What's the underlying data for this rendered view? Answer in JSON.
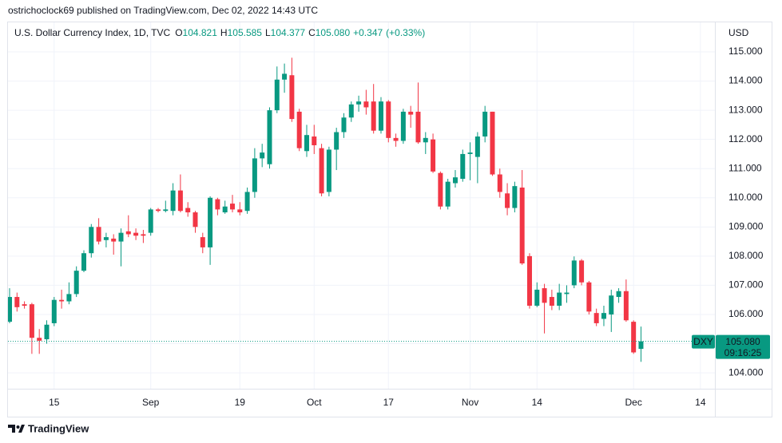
{
  "chart_data": {
    "type": "candlestick",
    "publisher_line": "ostrichoclock69 published on TradingView.com, Dec 02, 2022 14:43 UTC",
    "title": "U.S. Dollar Currency Index, 1D, TVC",
    "ohlc_keys": [
      "O",
      "H",
      "L",
      "C"
    ],
    "last_close_label": "105.080",
    "change": {
      "value": 0.347,
      "label": "+0.347"
    },
    "change_pct": {
      "value": 0.33,
      "label": "(+0.33%)"
    },
    "currency": "USD",
    "symbol": "DXY",
    "countdown": "09:16:25",
    "brand": "TradingView",
    "up_color": "#089981",
    "down_color": "#f23645",
    "grid": true,
    "xlim": [
      -0.215,
      94.95
    ],
    "xticks": [
      {
        "value": 6,
        "label": "15"
      },
      {
        "value": 19,
        "label": "Sep"
      },
      {
        "value": 31,
        "label": "19"
      },
      {
        "value": 41,
        "label": "Oct"
      },
      {
        "value": 51,
        "label": "17"
      },
      {
        "value": 62,
        "label": "Nov"
      },
      {
        "value": 71,
        "label": "14"
      },
      {
        "value": 84,
        "label": "Dec"
      },
      {
        "value": 93,
        "label": "14"
      }
    ],
    "ylim": [
      103.455,
      116.04
    ],
    "yticks": [
      {
        "value": 104,
        "label": "104.000"
      },
      {
        "value": 105,
        "label": "105.000"
      },
      {
        "value": 106,
        "label": "106.000"
      },
      {
        "value": 107,
        "label": "107.000"
      },
      {
        "value": 108,
        "label": "108.000"
      },
      {
        "value": 109,
        "label": "109.000"
      },
      {
        "value": 110,
        "label": "110.000"
      },
      {
        "value": 111,
        "label": "111.000"
      },
      {
        "value": 112,
        "label": "112.000"
      },
      {
        "value": 113,
        "label": "113.000"
      },
      {
        "value": 114,
        "label": "114.000"
      },
      {
        "value": 115,
        "label": "115.000"
      }
    ],
    "open": [
      105.75,
      106.6,
      106.35,
      106.35,
      105.2,
      105.15,
      105.7,
      106.5,
      106.45,
      106.7,
      107.5,
      108.1,
      109.0,
      108.55,
      108.6,
      108.5,
      108.85,
      108.8,
      108.75,
      108.8,
      109.6,
      109.55,
      109.55,
      110.25,
      109.65,
      109.5,
      108.65,
      108.3,
      109.95,
      109.5,
      109.8,
      109.6,
      109.55,
      110.2,
      111.35,
      111.15,
      113.0,
      114.05,
      114.2,
      112.95,
      111.6,
      112.1,
      111.7,
      110.2,
      111.65,
      112.25,
      112.75,
      113.2,
      113.3,
      113.3,
      112.3,
      113.3,
      112.05,
      111.95,
      112.95,
      112.95,
      111.9,
      112.0,
      110.85,
      109.7,
      110.5,
      110.65,
      111.5,
      111.4,
      112.1,
      112.95,
      110.8,
      110.15,
      109.65,
      110.35,
      108.0,
      106.3,
      106.9,
      106.6,
      106.3,
      106.7,
      107.0,
      107.85,
      107.1,
      106.05,
      105.85,
      106.0,
      106.6,
      106.8,
      105.75,
      104.821
    ],
    "high": [
      106.9,
      106.75,
      106.45,
      106.4,
      105.5,
      105.8,
      106.6,
      106.85,
      107.1,
      107.65,
      108.2,
      109.1,
      109.3,
      108.8,
      108.75,
      108.95,
      109.4,
      108.95,
      108.9,
      109.65,
      109.65,
      109.9,
      110.5,
      110.8,
      109.85,
      109.55,
      108.8,
      110.05,
      110.0,
      109.9,
      110.1,
      109.85,
      110.35,
      111.7,
      111.85,
      113.1,
      114.5,
      114.6,
      114.8,
      113.05,
      112.5,
      112.5,
      111.85,
      111.75,
      112.4,
      112.9,
      113.3,
      113.5,
      113.7,
      113.9,
      113.45,
      113.35,
      112.2,
      113.05,
      113.15,
      113.95,
      112.25,
      112.2,
      110.9,
      110.65,
      110.95,
      111.65,
      111.9,
      112.25,
      113.15,
      112.95,
      111.0,
      110.5,
      110.55,
      110.95,
      108.1,
      107.1,
      107.05,
      106.85,
      107.05,
      107.0,
      107.99,
      107.9,
      107.15,
      106.2,
      106.3,
      106.85,
      106.9,
      107.2,
      105.8,
      105.585
    ],
    "low": [
      105.7,
      106.1,
      106.2,
      104.65,
      104.65,
      105.0,
      105.6,
      106.2,
      106.35,
      106.6,
      107.45,
      107.95,
      108.4,
      108.3,
      108.05,
      107.65,
      108.65,
      108.55,
      108.45,
      108.7,
      109.5,
      109.5,
      109.4,
      109.5,
      109.35,
      108.8,
      108.1,
      107.7,
      109.4,
      109.45,
      109.5,
      109.4,
      109.45,
      110.0,
      111.05,
      111.0,
      112.9,
      113.6,
      112.6,
      111.6,
      111.4,
      111.5,
      110.05,
      110.05,
      110.95,
      112.05,
      112.6,
      112.95,
      112.85,
      112.2,
      112.2,
      111.9,
      111.75,
      111.85,
      112.4,
      111.85,
      111.5,
      110.85,
      109.6,
      109.6,
      110.35,
      110.55,
      110.6,
      110.5,
      111.9,
      110.75,
      110.0,
      109.4,
      109.5,
      107.7,
      106.2,
      106.25,
      105.35,
      106.15,
      106.15,
      106.4,
      106.9,
      107.0,
      106.0,
      105.6,
      105.6,
      105.4,
      106.4,
      105.75,
      104.65,
      104.377
    ],
    "close": [
      106.6,
      106.25,
      106.3,
      105.2,
      105.1,
      105.65,
      106.5,
      106.45,
      106.7,
      107.5,
      108.1,
      109.0,
      108.5,
      108.65,
      108.5,
      108.8,
      108.75,
      108.7,
      108.7,
      109.6,
      109.55,
      109.6,
      110.25,
      109.55,
      109.5,
      109.0,
      108.3,
      110.0,
      109.6,
      109.7,
      109.6,
      109.5,
      110.2,
      111.35,
      111.55,
      113.0,
      114.05,
      114.25,
      112.7,
      111.7,
      112.15,
      111.8,
      110.15,
      111.65,
      112.25,
      112.75,
      113.2,
      113.3,
      113.1,
      112.3,
      113.3,
      112.05,
      111.95,
      112.95,
      112.85,
      111.9,
      112.05,
      110.9,
      109.7,
      110.55,
      110.7,
      111.5,
      111.55,
      112.1,
      112.95,
      110.8,
      110.2,
      109.65,
      110.4,
      107.75,
      106.3,
      106.85,
      106.4,
      106.3,
      106.75,
      106.75,
      107.85,
      107.1,
      106.1,
      105.7,
      106.05,
      106.65,
      106.8,
      105.8,
      104.7,
      105.08
    ]
  }
}
